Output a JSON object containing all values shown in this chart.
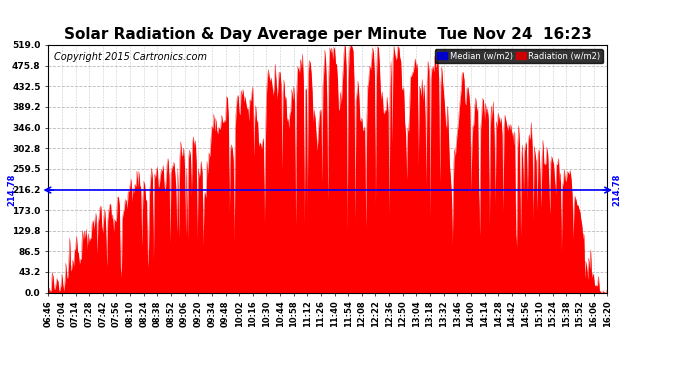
{
  "title": "Solar Radiation & Day Average per Minute  Tue Nov 24  16:23",
  "copyright": "Copyright 2015 Cartronics.com",
  "median_value": 214.78,
  "y_ticks": [
    0.0,
    43.2,
    86.5,
    129.8,
    173.0,
    216.2,
    259.5,
    302.8,
    346.0,
    389.2,
    432.5,
    475.8,
    519.0
  ],
  "y_max": 519.0,
  "y_min": 0.0,
  "bar_color": "#FF0000",
  "median_color": "#0000FF",
  "background_color": "#FFFFFF",
  "grid_color": "#AAAAAA",
  "legend_median_bg": "#0000CC",
  "legend_radiation_bg": "#CC0000",
  "x_labels": [
    "06:46",
    "07:04",
    "07:14",
    "07:28",
    "07:42",
    "07:56",
    "08:10",
    "08:24",
    "08:38",
    "08:52",
    "09:06",
    "09:20",
    "09:34",
    "09:48",
    "10:02",
    "10:16",
    "10:30",
    "10:44",
    "10:58",
    "11:12",
    "11:26",
    "11:40",
    "11:54",
    "12:08",
    "12:22",
    "12:36",
    "12:50",
    "13:04",
    "13:18",
    "13:32",
    "13:46",
    "14:00",
    "14:14",
    "14:28",
    "14:42",
    "14:56",
    "15:10",
    "15:24",
    "15:38",
    "15:52",
    "16:06",
    "16:20"
  ],
  "title_fontsize": 11,
  "copyright_fontsize": 7,
  "tick_fontsize": 6.5
}
